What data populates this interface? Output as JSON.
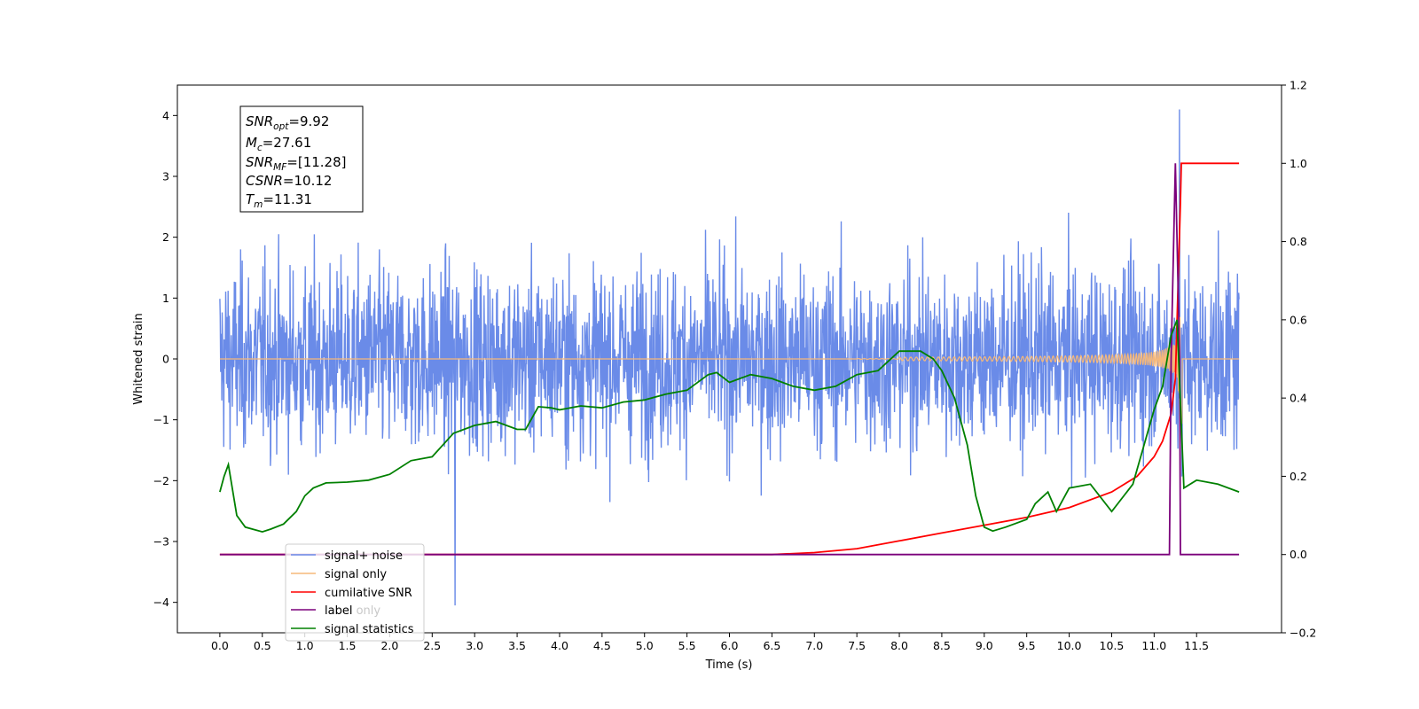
{
  "chart_data": {
    "type": "line",
    "xlabel": "Time (s)",
    "ylabel": "Whitened strain",
    "xlim": [
      -0.5,
      12.5
    ],
    "ylim_left": [
      -4.5,
      4.5
    ],
    "ylim_right": [
      -0.2,
      1.2
    ],
    "x_ticks": [
      "0.0",
      "0.5",
      "1.0",
      "1.5",
      "2.0",
      "2.5",
      "3.0",
      "3.5",
      "4.0",
      "4.5",
      "5.0",
      "5.5",
      "6.0",
      "6.5",
      "7.0",
      "7.5",
      "8.0",
      "8.5",
      "9.0",
      "9.5",
      "10.0",
      "10.5",
      "11.0",
      "11.5"
    ],
    "y_ticks_left": [
      "4",
      "3",
      "2",
      "1",
      "0",
      "−1",
      "−2",
      "−3",
      "−4"
    ],
    "y_ticks_right": [
      "1.2",
      "1.0",
      "0.8",
      "0.6",
      "0.4",
      "0.2",
      "0.0",
      "−0.2"
    ],
    "annotation": {
      "snr_opt": {
        "base": "SNR",
        "sub": "opt",
        "value": "=9.92"
      },
      "mc": {
        "base": "M",
        "sub": "c",
        "value": "=27.61"
      },
      "snr_mf": {
        "base": "SNR",
        "sub": "MF",
        "value": "=[11.28]"
      },
      "csnr": {
        "base": "CSNR",
        "sub": "",
        "value": "=10.12"
      },
      "tm": {
        "base": "T",
        "sub": "m",
        "value": "=11.31"
      }
    },
    "legend": {
      "position": "lower-left",
      "entries": [
        "signal+ noise",
        "signal only",
        "cumilative SNR",
        "label",
        "signal statistics"
      ],
      "hidden_entries": [
        "label only"
      ]
    },
    "series": [
      {
        "name": "signal+ noise",
        "axis": "left",
        "color": "#6a8be8",
        "x_range": [
          0.0,
          12.0
        ],
        "amplitude_range": [
          -4.05,
          4.1
        ],
        "note_peak_x": 11.3
      },
      {
        "name": "signal only",
        "axis": "left",
        "color": "#f5b87a",
        "x_range": [
          0.0,
          12.0
        ],
        "chirp_start": 8.0,
        "merger_time": 11.31,
        "peak_amplitude": 1.1
      },
      {
        "name": "cumilative SNR",
        "axis": "right",
        "x": [
          0.0,
          6.5,
          7.0,
          7.5,
          8.0,
          8.5,
          9.0,
          9.5,
          10.0,
          10.5,
          10.8,
          11.0,
          11.1,
          11.2,
          11.25,
          11.31,
          11.32,
          12.0
        ],
        "y": [
          0.0,
          0.0,
          0.005,
          0.015,
          0.035,
          0.055,
          0.075,
          0.095,
          0.12,
          0.16,
          0.2,
          0.25,
          0.29,
          0.36,
          0.45,
          0.9,
          1.0,
          1.0
        ],
        "color": "#ff0000"
      },
      {
        "name": "label",
        "axis": "right",
        "x": [
          0.0,
          11.18,
          11.2,
          11.25,
          11.3,
          11.31,
          12.0
        ],
        "y": [
          0.0,
          0.0,
          0.5,
          1.0,
          0.5,
          0.0,
          0.0
        ],
        "color": "#7b007b"
      },
      {
        "name": "signal statistics",
        "axis": "right",
        "x": [
          0.0,
          0.05,
          0.1,
          0.2,
          0.3,
          0.5,
          0.6,
          0.75,
          0.9,
          1.0,
          1.1,
          1.25,
          1.5,
          1.75,
          2.0,
          2.25,
          2.5,
          2.75,
          3.0,
          3.25,
          3.5,
          3.6,
          3.75,
          3.9,
          4.0,
          4.25,
          4.5,
          4.75,
          5.0,
          5.25,
          5.5,
          5.75,
          5.85,
          6.0,
          6.25,
          6.5,
          6.75,
          7.0,
          7.25,
          7.5,
          7.75,
          8.0,
          8.25,
          8.4,
          8.5,
          8.65,
          8.8,
          8.9,
          9.0,
          9.1,
          9.25,
          9.5,
          9.6,
          9.75,
          9.85,
          10.0,
          10.25,
          10.5,
          10.75,
          11.0,
          11.1,
          11.2,
          11.27,
          11.35,
          11.5,
          11.75,
          12.0
        ],
        "y": [
          0.16,
          0.2,
          0.23,
          0.1,
          0.07,
          0.058,
          0.065,
          0.078,
          0.11,
          0.15,
          0.17,
          0.183,
          0.185,
          0.19,
          0.205,
          0.24,
          0.25,
          0.31,
          0.33,
          0.34,
          0.32,
          0.32,
          0.378,
          0.375,
          0.37,
          0.38,
          0.375,
          0.39,
          0.395,
          0.41,
          0.42,
          0.46,
          0.465,
          0.44,
          0.46,
          0.45,
          0.43,
          0.42,
          0.43,
          0.46,
          0.47,
          0.52,
          0.52,
          0.5,
          0.47,
          0.4,
          0.28,
          0.15,
          0.07,
          0.06,
          0.07,
          0.09,
          0.13,
          0.16,
          0.11,
          0.17,
          0.18,
          0.11,
          0.18,
          0.37,
          0.43,
          0.56,
          0.6,
          0.17,
          0.19,
          0.18,
          0.16
        ],
        "color": "#008000"
      }
    ]
  }
}
